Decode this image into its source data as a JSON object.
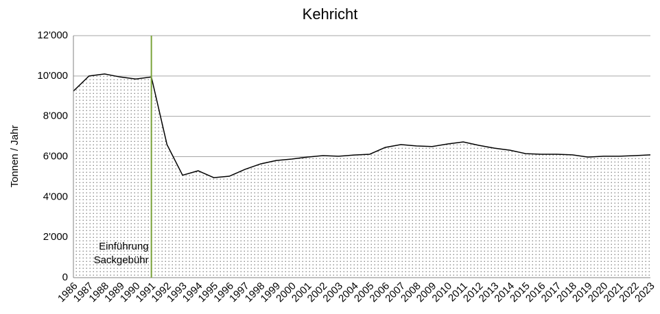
{
  "chart_data": {
    "type": "area",
    "title": "Kehricht",
    "y_label": "Tonnen / Jahr",
    "categories": [
      "1986",
      "1987",
      "1988",
      "1989",
      "1990",
      "1991",
      "1992",
      "1993",
      "1994",
      "1995",
      "1996",
      "1997",
      "1998",
      "1999",
      "2000",
      "2001",
      "2002",
      "2003",
      "2004",
      "2005",
      "2006",
      "2007",
      "2008",
      "2009",
      "2010",
      "2011",
      "2012",
      "2013",
      "2014",
      "2015",
      "2016",
      "2017",
      "2018",
      "2019",
      "2020",
      "2021",
      "2022",
      "2023"
    ],
    "values": [
      9250,
      10000,
      10100,
      9950,
      9850,
      9950,
      6600,
      5080,
      5300,
      4960,
      5030,
      5370,
      5640,
      5810,
      5880,
      5980,
      6050,
      6020,
      6080,
      6120,
      6460,
      6600,
      6530,
      6500,
      6630,
      6730,
      6560,
      6420,
      6320,
      6150,
      6120,
      6120,
      6090,
      5980,
      6020,
      6020,
      6050,
      6090
    ],
    "color": "#000000",
    "ylim": [
      0,
      12000
    ],
    "yticks": [
      0,
      {
        "value": 2000,
        "label": "2'000"
      },
      {
        "value": 4000,
        "label": "4'000"
      },
      {
        "value": 6000,
        "label": "6'000"
      },
      {
        "value": 8000,
        "label": "8'000"
      },
      {
        "value": 10000,
        "label": "10'000"
      },
      {
        "value": 12000,
        "label": "12'000"
      }
    ],
    "grid": true,
    "marker": {
      "x": "1991",
      "text": [
        "Einführung",
        "Sackgebühr"
      ],
      "color": "#7aa33a"
    }
  }
}
